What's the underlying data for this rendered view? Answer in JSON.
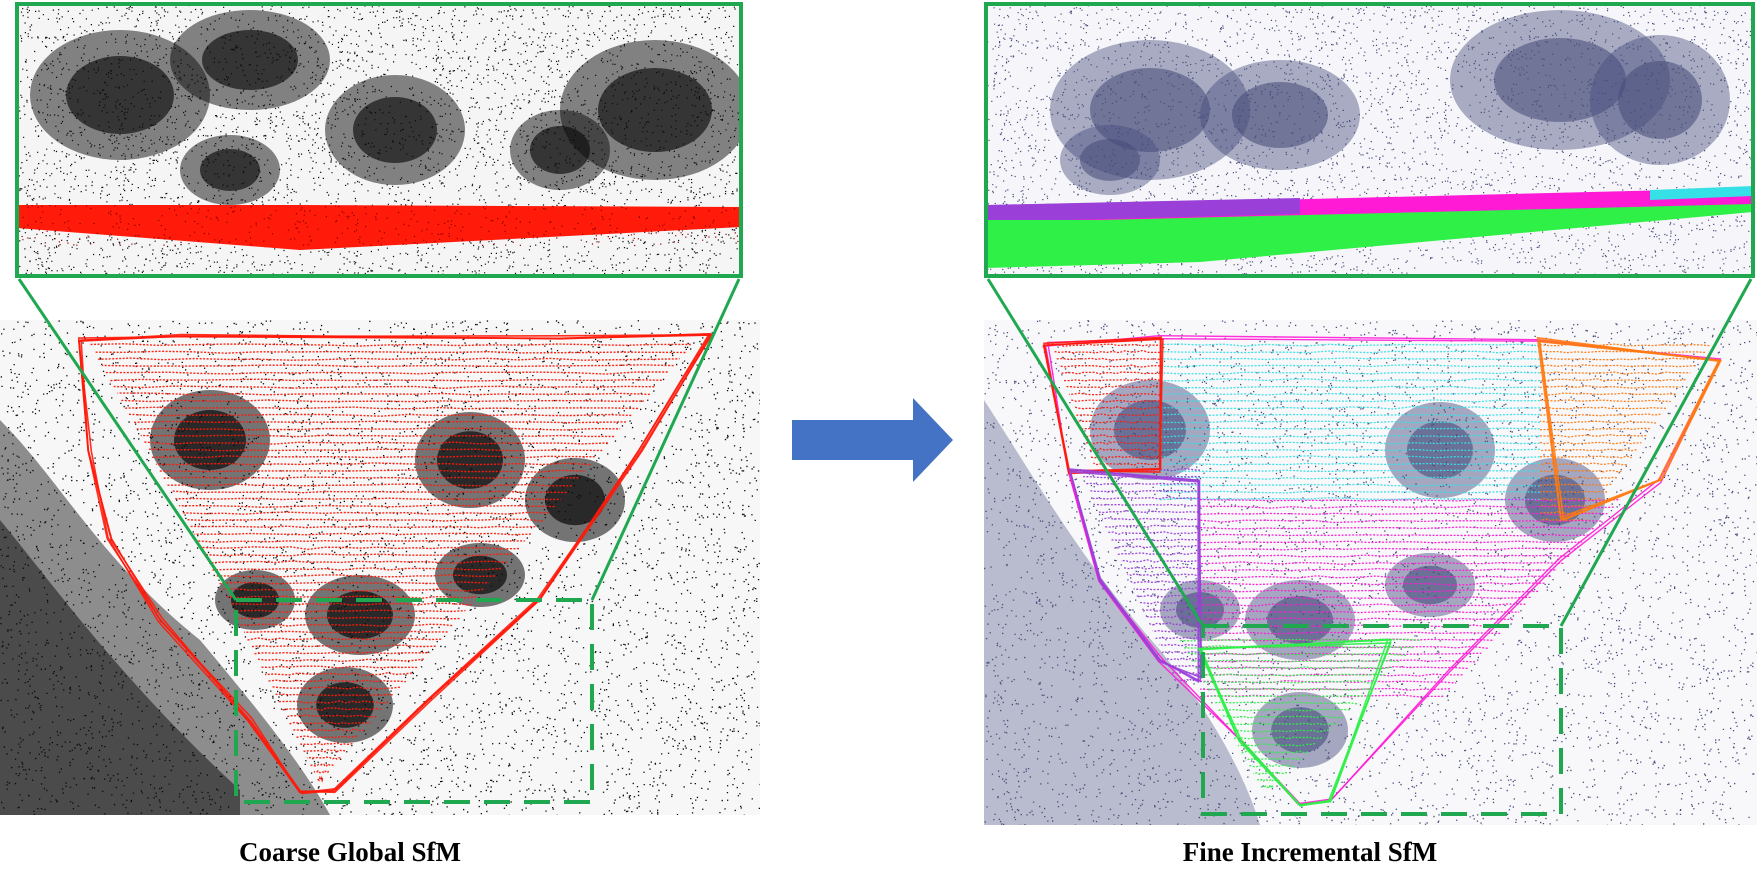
{
  "figure": {
    "left_panel": {
      "caption": "Coarse Global SfM",
      "colors": {
        "trajectory": "#ff1a0a",
        "points": "#0a0a0a",
        "highlight_box": "#1fa84f"
      }
    },
    "right_panel": {
      "caption": "Fine Incremental SfM",
      "colors": {
        "trajectory_segments": [
          "#ff1a0a",
          "#35e0e6",
          "#ff7a10",
          "#9a3fd8",
          "#ff1ad6",
          "#2ef046"
        ],
        "points": "#454c7a",
        "highlight_box": "#1fa84f"
      }
    },
    "arrow": {
      "color": "#4472c4",
      "icon": "right-arrow-icon"
    }
  }
}
